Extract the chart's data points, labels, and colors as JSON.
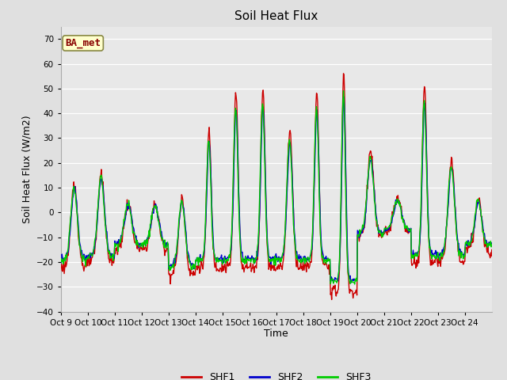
{
  "title": "Soil Heat Flux",
  "ylabel": "Soil Heat Flux (W/m2)",
  "xlabel": "Time",
  "ylim": [
    -40,
    75
  ],
  "yticks": [
    -40,
    -30,
    -20,
    -10,
    0,
    10,
    20,
    30,
    40,
    50,
    60,
    70
  ],
  "line_colors": {
    "SHF1": "#cc0000",
    "SHF2": "#0000cc",
    "SHF3": "#00cc00"
  },
  "line_width": 1.0,
  "plot_bg": "#e8e8e8",
  "fig_bg": "#e0e0e0",
  "annotation_text": "BA_met",
  "annotation_box_facecolor": "#ffffcc",
  "annotation_box_edgecolor": "#888844",
  "annotation_text_color": "#880000",
  "title_fontsize": 11,
  "tick_label_fontsize": 7.5,
  "axis_label_fontsize": 9,
  "legend_fontsize": 9,
  "xtick_labels": [
    "Oct 9",
    "Oct 10",
    "Oct 11",
    "Oct 12",
    "Oct 13",
    "Oct 14",
    "Oct 15",
    "Oct 16",
    "Oct 17",
    "Oct 18",
    "Oct 19",
    "Oct 20",
    "Oct 21",
    "Oct 22",
    "Oct 23",
    "Oct 24"
  ]
}
